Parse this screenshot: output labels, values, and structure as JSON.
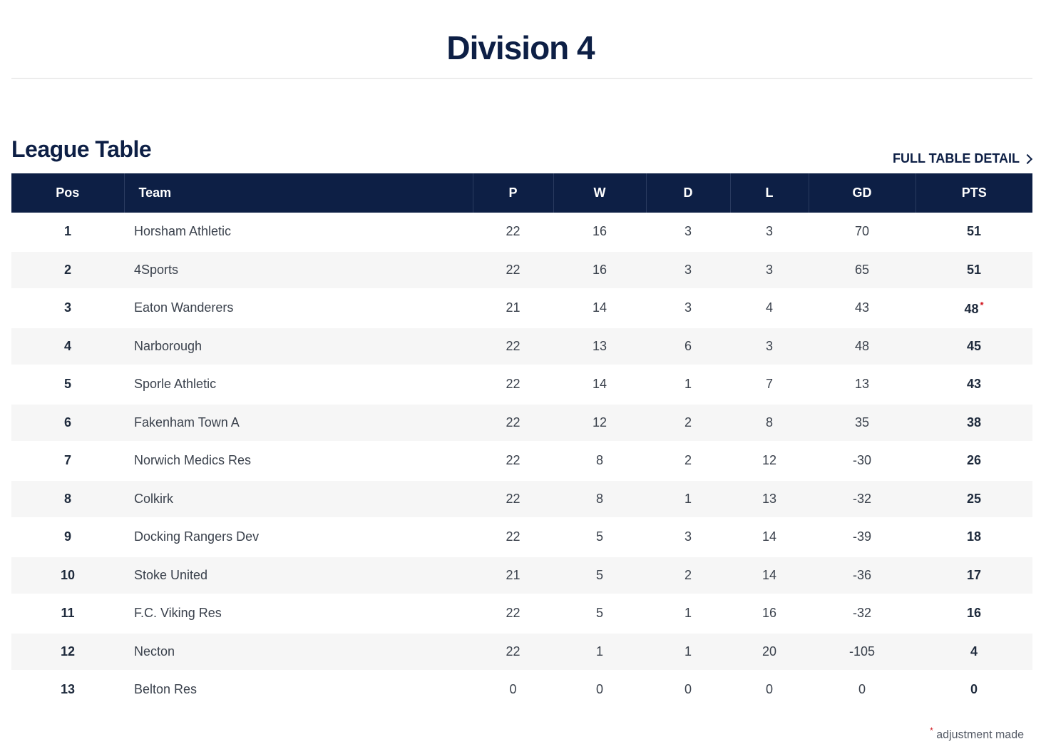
{
  "page": {
    "title": "Division 4"
  },
  "section": {
    "title": "League Table",
    "full_detail_label": "FULL TABLE DETAIL"
  },
  "table": {
    "columns": [
      "Pos",
      "Team",
      "P",
      "W",
      "D",
      "L",
      "GD",
      "PTS"
    ],
    "rows": [
      {
        "pos": "1",
        "team": "Horsham Athletic",
        "p": "22",
        "w": "16",
        "d": "3",
        "l": "3",
        "gd": "70",
        "pts": "51",
        "adjusted": false
      },
      {
        "pos": "2",
        "team": "4Sports",
        "p": "22",
        "w": "16",
        "d": "3",
        "l": "3",
        "gd": "65",
        "pts": "51",
        "adjusted": false
      },
      {
        "pos": "3",
        "team": "Eaton Wanderers",
        "p": "21",
        "w": "14",
        "d": "3",
        "l": "4",
        "gd": "43",
        "pts": "48",
        "adjusted": true
      },
      {
        "pos": "4",
        "team": "Narborough",
        "p": "22",
        "w": "13",
        "d": "6",
        "l": "3",
        "gd": "48",
        "pts": "45",
        "adjusted": false
      },
      {
        "pos": "5",
        "team": "Sporle Athletic",
        "p": "22",
        "w": "14",
        "d": "1",
        "l": "7",
        "gd": "13",
        "pts": "43",
        "adjusted": false
      },
      {
        "pos": "6",
        "team": "Fakenham Town A",
        "p": "22",
        "w": "12",
        "d": "2",
        "l": "8",
        "gd": "35",
        "pts": "38",
        "adjusted": false
      },
      {
        "pos": "7",
        "team": "Norwich Medics Res",
        "p": "22",
        "w": "8",
        "d": "2",
        "l": "12",
        "gd": "-30",
        "pts": "26",
        "adjusted": false
      },
      {
        "pos": "8",
        "team": "Colkirk",
        "p": "22",
        "w": "8",
        "d": "1",
        "l": "13",
        "gd": "-32",
        "pts": "25",
        "adjusted": false
      },
      {
        "pos": "9",
        "team": "Docking Rangers Dev",
        "p": "22",
        "w": "5",
        "d": "3",
        "l": "14",
        "gd": "-39",
        "pts": "18",
        "adjusted": false
      },
      {
        "pos": "10",
        "team": "Stoke United",
        "p": "21",
        "w": "5",
        "d": "2",
        "l": "14",
        "gd": "-36",
        "pts": "17",
        "adjusted": false
      },
      {
        "pos": "11",
        "team": "F.C. Viking Res",
        "p": "22",
        "w": "5",
        "d": "1",
        "l": "16",
        "gd": "-32",
        "pts": "16",
        "adjusted": false
      },
      {
        "pos": "12",
        "team": "Necton",
        "p": "22",
        "w": "1",
        "d": "1",
        "l": "20",
        "gd": "-105",
        "pts": "4",
        "adjusted": false
      },
      {
        "pos": "13",
        "team": "Belton Res",
        "p": "0",
        "w": "0",
        "d": "0",
        "l": "0",
        "gd": "0",
        "pts": "0",
        "adjusted": false
      }
    ]
  },
  "footnote": {
    "marker": "*",
    "text": "adjustment made"
  },
  "colors": {
    "header_bg": "#0d1f45",
    "adjust_marker": "#d0121b"
  }
}
